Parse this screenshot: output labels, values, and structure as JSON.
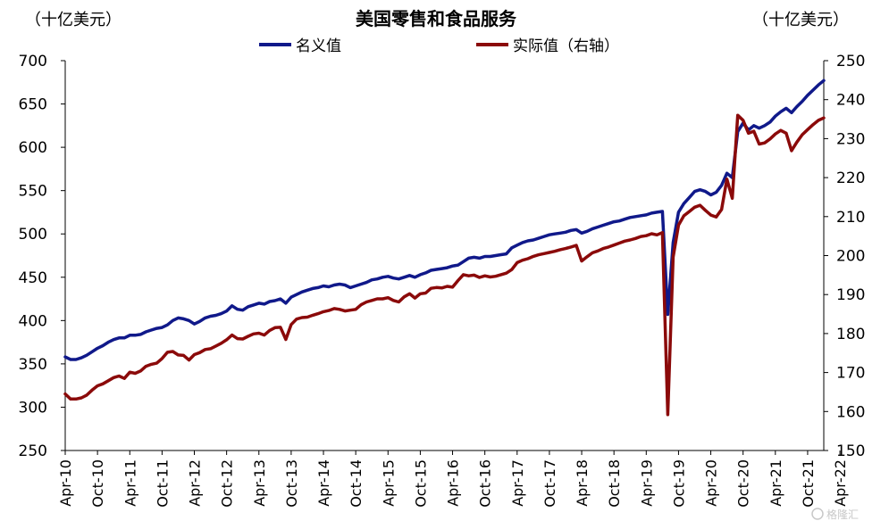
{
  "chart_data": {
    "type": "line",
    "title": "美国零售和食品服务",
    "left_unit": "（十亿美元）",
    "right_unit": "（十亿美元）",
    "watermark": "格隆汇",
    "y_left": {
      "lim": [
        250,
        700
      ],
      "ticks": [
        250,
        300,
        350,
        400,
        450,
        500,
        550,
        600,
        650,
        700
      ]
    },
    "y_right": {
      "lim": [
        150,
        250
      ],
      "ticks": [
        150,
        160,
        170,
        180,
        190,
        200,
        210,
        220,
        230,
        240,
        250
      ]
    },
    "x_tick_labels": [
      "Apr-10",
      "Oct-10",
      "Apr-11",
      "Oct-11",
      "Apr-12",
      "Oct-12",
      "Apr-13",
      "Oct-13",
      "Apr-14",
      "Oct-14",
      "Apr-15",
      "Oct-15",
      "Apr-16",
      "Oct-16",
      "Apr-17",
      "Oct-17",
      "Apr-18",
      "Oct-18",
      "Apr-19",
      "Oct-19",
      "Apr-20",
      "Oct-20",
      "Apr-21",
      "Oct-21",
      "Apr-22"
    ],
    "series": [
      {
        "name": "名义值",
        "axis": "left",
        "color": "#10198a",
        "values": [
          358,
          355,
          355,
          357,
          360,
          364,
          368,
          371,
          375,
          378,
          380,
          380,
          383,
          383,
          384,
          387,
          389,
          391,
          392,
          395,
          400,
          403,
          402,
          400,
          396,
          399,
          403,
          405,
          406,
          408,
          411,
          417,
          413,
          412,
          416,
          418,
          420,
          419,
          422,
          423,
          425,
          420,
          427,
          430,
          433,
          435,
          437,
          438,
          440,
          439,
          441,
          442,
          441,
          438,
          440,
          442,
          444,
          447,
          448,
          450,
          451,
          449,
          448,
          450,
          452,
          450,
          453,
          455,
          458,
          459,
          460,
          461,
          463,
          464,
          468,
          472,
          473,
          472,
          474,
          474,
          475,
          476,
          477,
          484,
          487,
          490,
          492,
          493,
          495,
          497,
          499,
          500,
          501,
          502,
          504,
          505,
          501,
          503,
          506,
          508,
          510,
          512,
          514,
          515,
          517,
          519,
          520,
          521,
          522,
          524,
          525,
          526,
          407,
          490,
          525,
          535,
          542,
          549,
          551,
          549,
          545,
          548,
          556,
          570,
          565,
          618,
          628,
          620,
          625,
          622,
          625,
          629,
          636,
          641,
          645,
          640,
          647,
          653,
          660,
          666,
          672,
          677
        ]
      },
      {
        "name": "实际值（右轴）",
        "axis": "right",
        "color": "#8b0a0a",
        "values": [
          164.5,
          163.2,
          163.2,
          163.5,
          164.2,
          165.5,
          166.6,
          167.1,
          167.9,
          168.7,
          169.1,
          168.5,
          170.1,
          169.8,
          170.4,
          171.6,
          172.1,
          172.4,
          173.6,
          175.2,
          175.4,
          174.5,
          174.4,
          173.2,
          174.6,
          175.1,
          175.9,
          176.1,
          176.8,
          177.5,
          178.4,
          179.6,
          178.7,
          178.6,
          179.3,
          179.9,
          180.1,
          179.6,
          180.8,
          181.5,
          181.6,
          178.5,
          182.3,
          183.7,
          184.1,
          184.2,
          184.7,
          185.1,
          185.6,
          185.9,
          186.4,
          186.2,
          185.8,
          186.0,
          186.2,
          187.4,
          188.1,
          188.5,
          188.9,
          188.9,
          189.2,
          188.5,
          188.1,
          189.4,
          190.2,
          189.1,
          190.2,
          190.4,
          191.6,
          191.8,
          191.7,
          192.1,
          191.9,
          193.6,
          195.1,
          194.8,
          195.0,
          194.4,
          194.8,
          194.5,
          194.7,
          195.1,
          195.5,
          196.4,
          198.2,
          198.8,
          199.2,
          199.8,
          200.2,
          200.5,
          200.8,
          201.1,
          201.5,
          201.8,
          202.2,
          202.6,
          198.6,
          199.7,
          200.7,
          201.2,
          201.8,
          202.2,
          202.7,
          203.2,
          203.7,
          204.0,
          204.4,
          204.9,
          205.1,
          205.6,
          205.3,
          205.9,
          159.2,
          199.6,
          207.8,
          210.2,
          211.3,
          212.4,
          212.9,
          211.6,
          210.4,
          209.9,
          211.8,
          219.6,
          214.7,
          236.0,
          234.7,
          231.4,
          231.9,
          228.6,
          228.9,
          229.9,
          231.2,
          232.1,
          231.4,
          226.9,
          229.1,
          231.0,
          232.3,
          233.6,
          234.7,
          235.3
        ]
      }
    ]
  }
}
